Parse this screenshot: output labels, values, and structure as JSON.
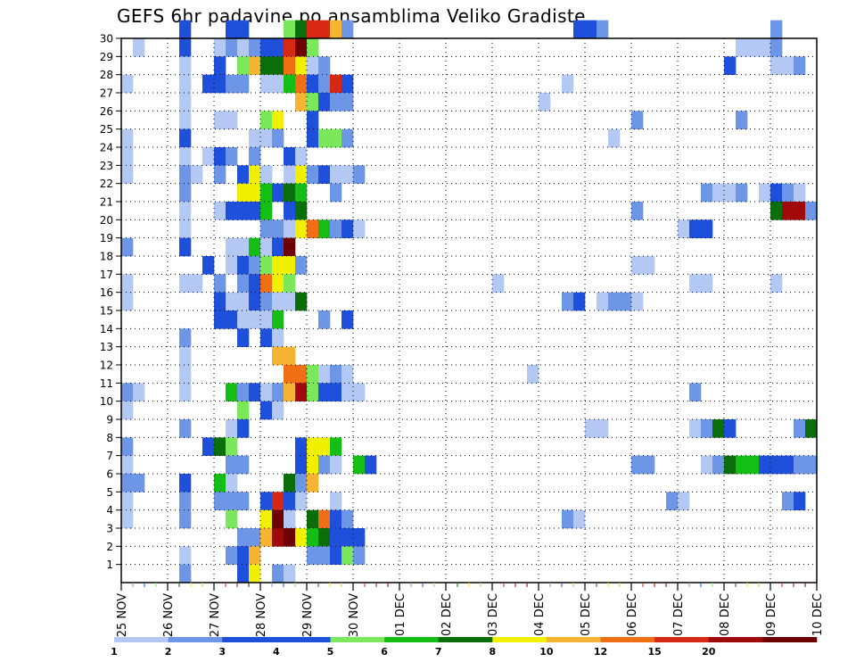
{
  "chart_data": {
    "type": "heatmap",
    "title": "GEFS 6hr padavine po ansamblima Veliko Gradiste",
    "xlabel": "",
    "ylabel": "",
    "x_tick_labels": [
      "25 NOV",
      "26 NOV",
      "27 NOV",
      "28 NOV",
      "29 NOV",
      "30 NOV",
      "01 DEC",
      "02 DEC",
      "03 DEC",
      "04 DEC",
      "05 DEC",
      "06 DEC",
      "07 DEC",
      "08 DEC",
      "09 DEC",
      "10 DEC"
    ],
    "y_tick_labels": [
      "1",
      "2",
      "3",
      "4",
      "5",
      "6",
      "7",
      "8",
      "9",
      "10",
      "11",
      "12",
      "13",
      "14",
      "15",
      "16",
      "17",
      "18",
      "19",
      "20",
      "21",
      "22",
      "23",
      "24",
      "25",
      "26",
      "27",
      "28",
      "29",
      "30"
    ],
    "time_steps": 60,
    "members": 30,
    "grid": true,
    "colorbar": {
      "labels": [
        "1",
        "2",
        "3",
        "4",
        "5",
        "6",
        "7",
        "8",
        "10",
        "12",
        "15",
        "20"
      ],
      "colors": [
        "#b4c8f4",
        "#6e96e6",
        "#1e50dc",
        "#1e50dc",
        "#7ae85a",
        "#14be14",
        "#0a6e0a",
        "#f0f000",
        "#f5b432",
        "#f06e14",
        "#d72814",
        "#a00a0a",
        "#6e0000"
      ]
    },
    "cells": [
      [
        30,
        5,
        4
      ],
      [
        30,
        9,
        3
      ],
      [
        30,
        10,
        3
      ],
      [
        30,
        14,
        5
      ],
      [
        30,
        15,
        7
      ],
      [
        30,
        16,
        11
      ],
      [
        30,
        17,
        11
      ],
      [
        30,
        18,
        9
      ],
      [
        30,
        19,
        2
      ],
      [
        30,
        39,
        3
      ],
      [
        30,
        40,
        3
      ],
      [
        30,
        41,
        2
      ],
      [
        30,
        56,
        2
      ],
      [
        29,
        1,
        1
      ],
      [
        29,
        5,
        3
      ],
      [
        29,
        8,
        1
      ],
      [
        29,
        9,
        2
      ],
      [
        29,
        10,
        1
      ],
      [
        29,
        11,
        2
      ],
      [
        29,
        12,
        3
      ],
      [
        29,
        13,
        3
      ],
      [
        29,
        14,
        11
      ],
      [
        29,
        15,
        13
      ],
      [
        29,
        16,
        5
      ],
      [
        29,
        53,
        1
      ],
      [
        29,
        54,
        1
      ],
      [
        29,
        55,
        1
      ],
      [
        29,
        56,
        2
      ],
      [
        28,
        5,
        1
      ],
      [
        28,
        8,
        3
      ],
      [
        28,
        10,
        5
      ],
      [
        28,
        11,
        9
      ],
      [
        28,
        12,
        7
      ],
      [
        28,
        13,
        7
      ],
      [
        28,
        14,
        10
      ],
      [
        28,
        15,
        8
      ],
      [
        28,
        16,
        1
      ],
      [
        28,
        17,
        2
      ],
      [
        28,
        52,
        3
      ],
      [
        28,
        56,
        1
      ],
      [
        28,
        57,
        1
      ],
      [
        28,
        58,
        2
      ],
      [
        27,
        0,
        1
      ],
      [
        27,
        5,
        1
      ],
      [
        27,
        7,
        4
      ],
      [
        27,
        8,
        3
      ],
      [
        27,
        9,
        2
      ],
      [
        27,
        10,
        2
      ],
      [
        27,
        12,
        1
      ],
      [
        27,
        13,
        1
      ],
      [
        27,
        14,
        6
      ],
      [
        27,
        15,
        10
      ],
      [
        27,
        16,
        4
      ],
      [
        27,
        17,
        2
      ],
      [
        27,
        18,
        11
      ],
      [
        27,
        19,
        3
      ],
      [
        27,
        38,
        1
      ],
      [
        26,
        5,
        1
      ],
      [
        26,
        15,
        9
      ],
      [
        26,
        16,
        5
      ],
      [
        26,
        17,
        4
      ],
      [
        26,
        18,
        2
      ],
      [
        26,
        19,
        2
      ],
      [
        26,
        36,
        1
      ],
      [
        25,
        5,
        1
      ],
      [
        25,
        8,
        1
      ],
      [
        25,
        9,
        1
      ],
      [
        25,
        12,
        5
      ],
      [
        25,
        13,
        8
      ],
      [
        25,
        16,
        3
      ],
      [
        25,
        44,
        2
      ],
      [
        25,
        53,
        2
      ],
      [
        24,
        0,
        1
      ],
      [
        24,
        5,
        3
      ],
      [
        24,
        11,
        1
      ],
      [
        24,
        12,
        1
      ],
      [
        24,
        13,
        2
      ],
      [
        24,
        16,
        3
      ],
      [
        24,
        17,
        5
      ],
      [
        24,
        18,
        5
      ],
      [
        24,
        19,
        2
      ],
      [
        24,
        42,
        1
      ],
      [
        23,
        0,
        1
      ],
      [
        23,
        5,
        1
      ],
      [
        23,
        7,
        1
      ],
      [
        23,
        8,
        4
      ],
      [
        23,
        9,
        2
      ],
      [
        23,
        11,
        2
      ],
      [
        23,
        14,
        3
      ],
      [
        23,
        15,
        1
      ],
      [
        22,
        0,
        1
      ],
      [
        22,
        5,
        2
      ],
      [
        22,
        6,
        1
      ],
      [
        22,
        8,
        2
      ],
      [
        22,
        10,
        4
      ],
      [
        22,
        11,
        8
      ],
      [
        22,
        12,
        1
      ],
      [
        22,
        14,
        1
      ],
      [
        22,
        15,
        8
      ],
      [
        22,
        16,
        2
      ],
      [
        22,
        17,
        3
      ],
      [
        22,
        18,
        1
      ],
      [
        22,
        19,
        1
      ],
      [
        22,
        20,
        2
      ],
      [
        21,
        5,
        2
      ],
      [
        21,
        10,
        8
      ],
      [
        21,
        11,
        8
      ],
      [
        21,
        12,
        6
      ],
      [
        21,
        13,
        3
      ],
      [
        21,
        14,
        7
      ],
      [
        21,
        15,
        6
      ],
      [
        21,
        18,
        2
      ],
      [
        21,
        50,
        2
      ],
      [
        21,
        51,
        1
      ],
      [
        21,
        52,
        1
      ],
      [
        21,
        53,
        2
      ],
      [
        21,
        55,
        1
      ],
      [
        21,
        56,
        3
      ],
      [
        21,
        57,
        2
      ],
      [
        21,
        58,
        1
      ],
      [
        20,
        5,
        1
      ],
      [
        20,
        8,
        1
      ],
      [
        20,
        9,
        3
      ],
      [
        20,
        10,
        4
      ],
      [
        20,
        11,
        4
      ],
      [
        20,
        12,
        6
      ],
      [
        20,
        14,
        4
      ],
      [
        20,
        15,
        7
      ],
      [
        20,
        44,
        2
      ],
      [
        20,
        56,
        7
      ],
      [
        20,
        57,
        12
      ],
      [
        20,
        58,
        12
      ],
      [
        20,
        59,
        2
      ],
      [
        19,
        5,
        1
      ],
      [
        19,
        12,
        2
      ],
      [
        19,
        13,
        2
      ],
      [
        19,
        14,
        1
      ],
      [
        19,
        15,
        8
      ],
      [
        19,
        16,
        10
      ],
      [
        19,
        17,
        6
      ],
      [
        19,
        18,
        2
      ],
      [
        19,
        19,
        3
      ],
      [
        19,
        20,
        1
      ],
      [
        19,
        48,
        1
      ],
      [
        19,
        49,
        3
      ],
      [
        19,
        50,
        3
      ],
      [
        18,
        0,
        2
      ],
      [
        18,
        5,
        3
      ],
      [
        18,
        9,
        1
      ],
      [
        18,
        10,
        1
      ],
      [
        18,
        11,
        6
      ],
      [
        18,
        12,
        1
      ],
      [
        18,
        13,
        4
      ],
      [
        18,
        14,
        13
      ],
      [
        17,
        7,
        3
      ],
      [
        17,
        9,
        1
      ],
      [
        17,
        10,
        4
      ],
      [
        17,
        11,
        2
      ],
      [
        17,
        12,
        5
      ],
      [
        17,
        13,
        8
      ],
      [
        17,
        14,
        8
      ],
      [
        17,
        15,
        2
      ],
      [
        17,
        44,
        1
      ],
      [
        17,
        45,
        1
      ],
      [
        16,
        0,
        1
      ],
      [
        16,
        5,
        1
      ],
      [
        16,
        6,
        1
      ],
      [
        16,
        8,
        2
      ],
      [
        16,
        10,
        2
      ],
      [
        16,
        11,
        3
      ],
      [
        16,
        12,
        10
      ],
      [
        16,
        13,
        8
      ],
      [
        16,
        14,
        5
      ],
      [
        16,
        32,
        1
      ],
      [
        16,
        49,
        1
      ],
      [
        16,
        50,
        1
      ],
      [
        16,
        56,
        1
      ],
      [
        15,
        0,
        1
      ],
      [
        15,
        8,
        4
      ],
      [
        15,
        9,
        1
      ],
      [
        15,
        10,
        1
      ],
      [
        15,
        11,
        3
      ],
      [
        15,
        12,
        2
      ],
      [
        15,
        13,
        1
      ],
      [
        15,
        14,
        1
      ],
      [
        15,
        15,
        7
      ],
      [
        15,
        38,
        2
      ],
      [
        15,
        39,
        4
      ],
      [
        15,
        41,
        1
      ],
      [
        15,
        42,
        2
      ],
      [
        15,
        43,
        2
      ],
      [
        15,
        44,
        1
      ],
      [
        14,
        8,
        3
      ],
      [
        14,
        9,
        3
      ],
      [
        14,
        10,
        1
      ],
      [
        14,
        11,
        1
      ],
      [
        14,
        12,
        1
      ],
      [
        14,
        13,
        6
      ],
      [
        14,
        17,
        2
      ],
      [
        14,
        19,
        3
      ],
      [
        13,
        5,
        2
      ],
      [
        13,
        10,
        3
      ],
      [
        13,
        12,
        4
      ],
      [
        13,
        13,
        1
      ],
      [
        12,
        5,
        1
      ],
      [
        12,
        13,
        9
      ],
      [
        12,
        14,
        9
      ],
      [
        11,
        5,
        1
      ],
      [
        11,
        14,
        10
      ],
      [
        11,
        15,
        10
      ],
      [
        11,
        16,
        5
      ],
      [
        11,
        17,
        1
      ],
      [
        11,
        18,
        2
      ],
      [
        11,
        19,
        1
      ],
      [
        11,
        35,
        1
      ],
      [
        10,
        0,
        2
      ],
      [
        10,
        1,
        1
      ],
      [
        10,
        5,
        1
      ],
      [
        10,
        9,
        6
      ],
      [
        10,
        10,
        2
      ],
      [
        10,
        11,
        3
      ],
      [
        10,
        12,
        1
      ],
      [
        10,
        13,
        2
      ],
      [
        10,
        14,
        9
      ],
      [
        10,
        15,
        12
      ],
      [
        10,
        16,
        5
      ],
      [
        10,
        17,
        3
      ],
      [
        10,
        18,
        3
      ],
      [
        10,
        19,
        1
      ],
      [
        10,
        20,
        1
      ],
      [
        10,
        49,
        2
      ],
      [
        9,
        0,
        1
      ],
      [
        9,
        10,
        5
      ],
      [
        9,
        12,
        4
      ],
      [
        9,
        13,
        1
      ],
      [
        8,
        5,
        2
      ],
      [
        8,
        9,
        1
      ],
      [
        8,
        10,
        3
      ],
      [
        8,
        40,
        1
      ],
      [
        8,
        41,
        1
      ],
      [
        8,
        49,
        1
      ],
      [
        8,
        50,
        2
      ],
      [
        8,
        51,
        7
      ],
      [
        8,
        52,
        4
      ],
      [
        8,
        58,
        2
      ],
      [
        8,
        59,
        7
      ],
      [
        7,
        0,
        2
      ],
      [
        7,
        7,
        4
      ],
      [
        7,
        8,
        7
      ],
      [
        7,
        9,
        5
      ],
      [
        7,
        15,
        3
      ],
      [
        7,
        16,
        8
      ],
      [
        7,
        17,
        8
      ],
      [
        7,
        18,
        6
      ],
      [
        6,
        0,
        1
      ],
      [
        6,
        9,
        2
      ],
      [
        6,
        10,
        2
      ],
      [
        6,
        15,
        3
      ],
      [
        6,
        16,
        8
      ],
      [
        6,
        17,
        2
      ],
      [
        6,
        18,
        1
      ],
      [
        6,
        20,
        6
      ],
      [
        6,
        21,
        3
      ],
      [
        6,
        44,
        2
      ],
      [
        6,
        45,
        2
      ],
      [
        6,
        50,
        1
      ],
      [
        6,
        51,
        2
      ],
      [
        6,
        52,
        7
      ],
      [
        6,
        53,
        6
      ],
      [
        6,
        54,
        6
      ],
      [
        6,
        55,
        3
      ],
      [
        6,
        56,
        3
      ],
      [
        6,
        57,
        4
      ],
      [
        6,
        58,
        2
      ],
      [
        6,
        59,
        2
      ],
      [
        5,
        0,
        2
      ],
      [
        5,
        1,
        2
      ],
      [
        5,
        5,
        3
      ],
      [
        5,
        8,
        6
      ],
      [
        5,
        9,
        1
      ],
      [
        5,
        14,
        7
      ],
      [
        5,
        15,
        2
      ],
      [
        5,
        16,
        9
      ],
      [
        4,
        0,
        1
      ],
      [
        4,
        5,
        2
      ],
      [
        4,
        8,
        2
      ],
      [
        4,
        9,
        2
      ],
      [
        4,
        10,
        2
      ],
      [
        4,
        12,
        3
      ],
      [
        4,
        13,
        11
      ],
      [
        4,
        14,
        3
      ],
      [
        4,
        15,
        1
      ],
      [
        4,
        18,
        1
      ],
      [
        4,
        47,
        2
      ],
      [
        4,
        48,
        1
      ],
      [
        4,
        57,
        2
      ],
      [
        4,
        58,
        4
      ],
      [
        3,
        0,
        1
      ],
      [
        3,
        5,
        2
      ],
      [
        3,
        9,
        5
      ],
      [
        3,
        12,
        8
      ],
      [
        3,
        13,
        13
      ],
      [
        3,
        14,
        1
      ],
      [
        3,
        16,
        7
      ],
      [
        3,
        17,
        10
      ],
      [
        3,
        18,
        4
      ],
      [
        3,
        19,
        2
      ],
      [
        3,
        38,
        2
      ],
      [
        3,
        39,
        1
      ],
      [
        2,
        10,
        2
      ],
      [
        2,
        11,
        2
      ],
      [
        2,
        12,
        9
      ],
      [
        2,
        13,
        12
      ],
      [
        2,
        14,
        13
      ],
      [
        2,
        15,
        8
      ],
      [
        2,
        16,
        6
      ],
      [
        2,
        17,
        7
      ],
      [
        2,
        18,
        3
      ],
      [
        2,
        19,
        3
      ],
      [
        2,
        20,
        3
      ],
      [
        1,
        5,
        1
      ],
      [
        1,
        9,
        2
      ],
      [
        1,
        10,
        4
      ],
      [
        1,
        11,
        9
      ],
      [
        1,
        16,
        2
      ],
      [
        1,
        17,
        2
      ],
      [
        1,
        18,
        4
      ],
      [
        1,
        19,
        5
      ],
      [
        1,
        20,
        2
      ],
      [
        0,
        5,
        2
      ],
      [
        0,
        10,
        3
      ],
      [
        0,
        11,
        8
      ],
      [
        0,
        13,
        2
      ],
      [
        0,
        14,
        1
      ]
    ]
  }
}
